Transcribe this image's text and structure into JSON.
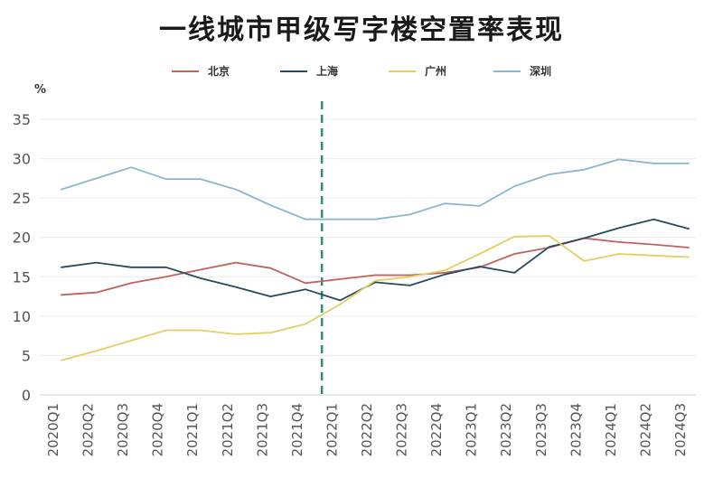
{
  "chart_data": {
    "type": "line",
    "title": "一线城市甲级写字楼空置率表现",
    "ylabel": "%",
    "xlabel": "",
    "ylim": [
      0,
      35
    ],
    "yticks": [
      0,
      5,
      10,
      15,
      20,
      25,
      30,
      35
    ],
    "grid": true,
    "legend_position": "top",
    "categories": [
      "2020Q1",
      "2020Q2",
      "2020Q3",
      "2020Q4",
      "2021Q1",
      "2021Q2",
      "2021Q3",
      "2021Q4",
      "2022Q1",
      "2022Q2",
      "2022Q3",
      "2022Q4",
      "2023Q1",
      "2023Q2",
      "2023Q3",
      "2023Q4",
      "2024Q1",
      "2024Q2",
      "2024Q3"
    ],
    "divider_after": "2021Q4",
    "series": [
      {
        "name": "北京",
        "color": "#c0625e",
        "values": [
          12.7,
          13.0,
          14.2,
          15.0,
          15.9,
          16.8,
          16.1,
          14.2,
          14.7,
          15.2,
          15.2,
          15.5,
          16.2,
          17.9,
          18.7,
          19.9,
          19.4,
          19.1,
          18.7
        ]
      },
      {
        "name": "上海",
        "color": "#284a5c",
        "values": [
          16.2,
          16.8,
          16.2,
          16.2,
          14.8,
          13.7,
          12.5,
          13.4,
          12.0,
          14.3,
          13.9,
          15.3,
          16.3,
          15.5,
          18.8,
          19.9,
          21.2,
          22.3,
          21.1
        ]
      },
      {
        "name": "广州",
        "color": "#e3cf62",
        "values": [
          4.4,
          5.6,
          6.9,
          8.2,
          8.2,
          7.7,
          7.9,
          9.0,
          11.5,
          14.5,
          15.0,
          15.8,
          17.9,
          20.1,
          20.2,
          17.0,
          17.9,
          17.7,
          17.5
        ]
      },
      {
        "name": "深圳",
        "color": "#89b7cc",
        "values": [
          26.1,
          27.5,
          28.9,
          27.4,
          27.4,
          26.1,
          24.1,
          22.3,
          22.3,
          22.3,
          22.9,
          24.3,
          24.0,
          26.5,
          28.0,
          28.6,
          29.9,
          29.4,
          29.4
        ]
      }
    ]
  }
}
